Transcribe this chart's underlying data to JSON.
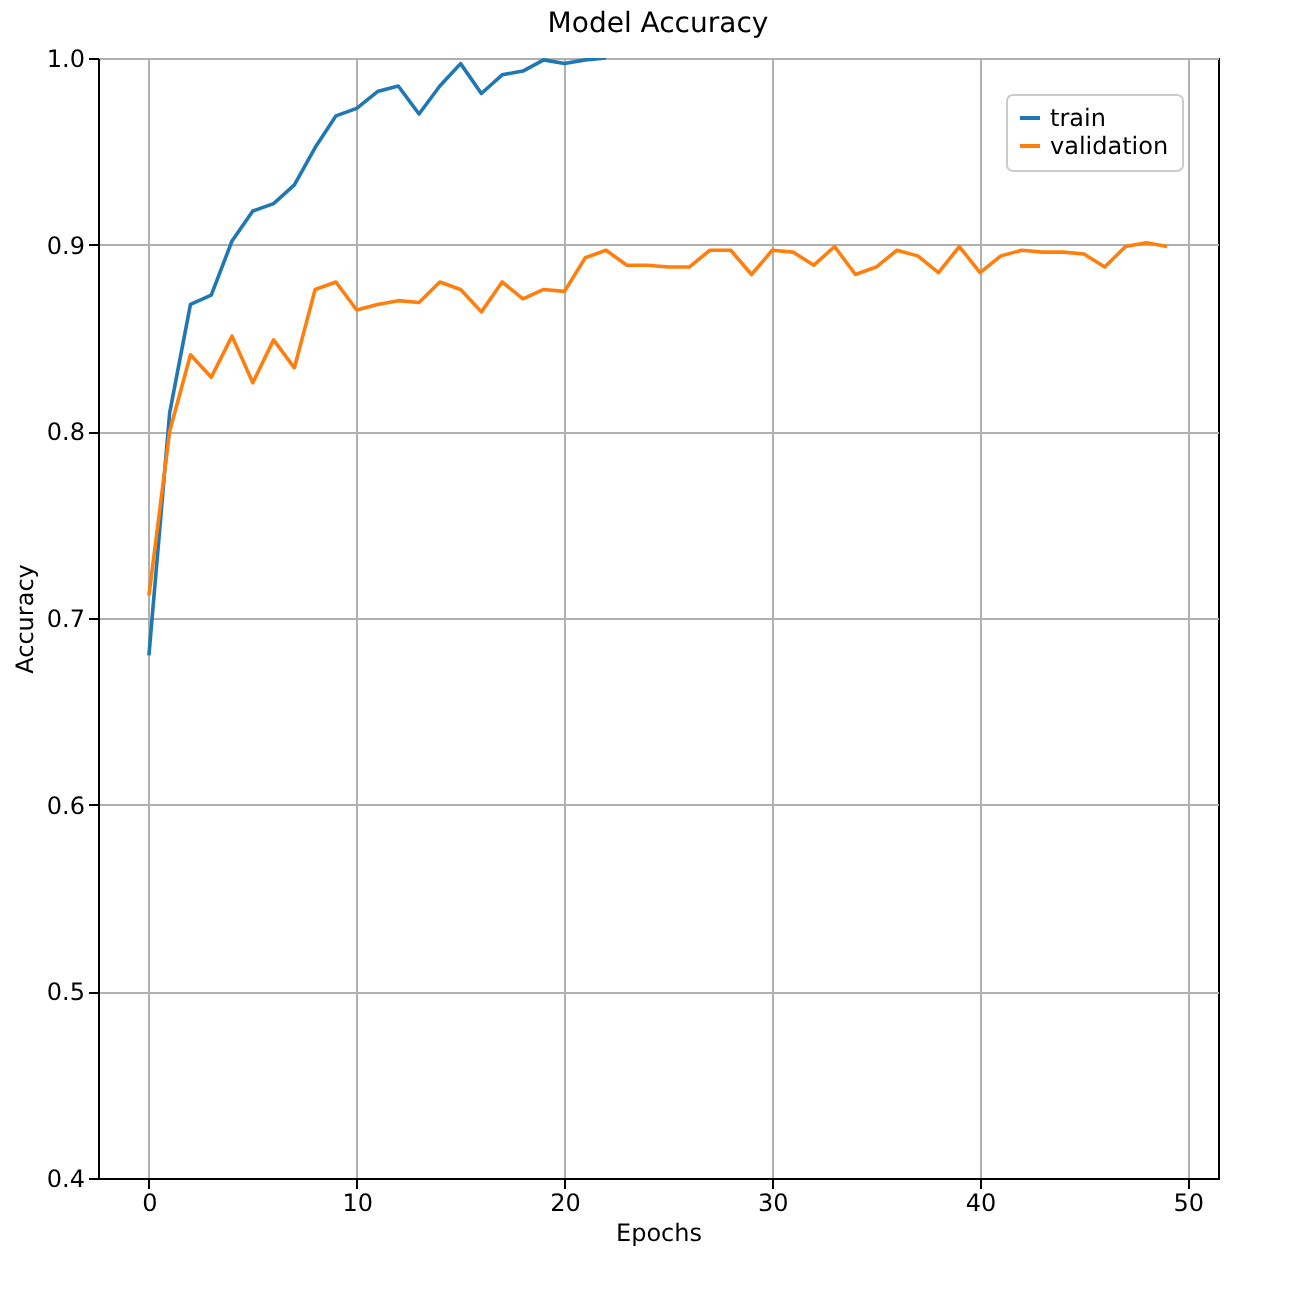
{
  "chart_data": {
    "type": "line",
    "title": "Model Accuracy",
    "xlabel": "Epochs",
    "ylabel": "Accuracy",
    "x": [
      0,
      1,
      2,
      3,
      4,
      5,
      6,
      7,
      8,
      9,
      10,
      11,
      12,
      13,
      14,
      15,
      16,
      17,
      18,
      19,
      20,
      21,
      22,
      23,
      24,
      25,
      26,
      27,
      28,
      29,
      30,
      31,
      32,
      33,
      34,
      35,
      36,
      37,
      38,
      39,
      40,
      41,
      42,
      43,
      44,
      45,
      46,
      47,
      48,
      49
    ],
    "series": [
      {
        "name": "train",
        "color": "#1f77b4",
        "values": [
          0.68,
          0.81,
          0.868,
          0.873,
          0.902,
          0.918,
          0.922,
          0.932,
          0.952,
          0.969,
          0.973,
          0.982,
          0.985,
          0.97,
          0.985,
          0.997,
          0.981,
          0.991,
          0.993,
          0.999,
          0.997,
          0.999,
          1.0,
          null,
          null,
          null,
          null,
          null,
          null,
          null,
          null,
          null,
          null,
          null,
          null,
          null,
          null,
          null,
          null,
          null,
          null,
          null,
          null,
          null,
          null,
          null,
          null,
          null,
          null,
          null
        ]
      },
      {
        "name": "validation",
        "color": "#ff7f0e",
        "values": [
          0.712,
          0.8,
          0.841,
          0.829,
          0.851,
          0.826,
          0.849,
          0.834,
          0.876,
          0.88,
          0.865,
          0.868,
          0.87,
          0.869,
          0.88,
          0.876,
          0.864,
          0.88,
          0.871,
          0.876,
          0.875,
          0.893,
          0.897,
          0.889,
          0.889,
          0.888,
          0.888,
          0.897,
          0.897,
          0.884,
          0.897,
          0.896,
          0.889,
          0.899,
          0.884,
          0.888,
          0.897,
          0.894,
          0.885,
          0.899,
          0.885,
          0.894,
          0.897,
          0.896,
          0.896,
          0.895,
          0.888,
          0.899,
          0.901,
          0.899
        ]
      }
    ],
    "xlim": [
      -2.45,
      51.45
    ],
    "xticks": [
      0,
      10,
      20,
      30,
      40,
      50
    ],
    "ylim": [
      0.4,
      1.0
    ],
    "yticks": [
      0.4,
      0.5,
      0.6,
      0.7,
      0.8,
      0.9,
      {
        "value": 1.0,
        "label": "1.0"
      }
    ],
    "grid": true,
    "legend": "top right"
  }
}
